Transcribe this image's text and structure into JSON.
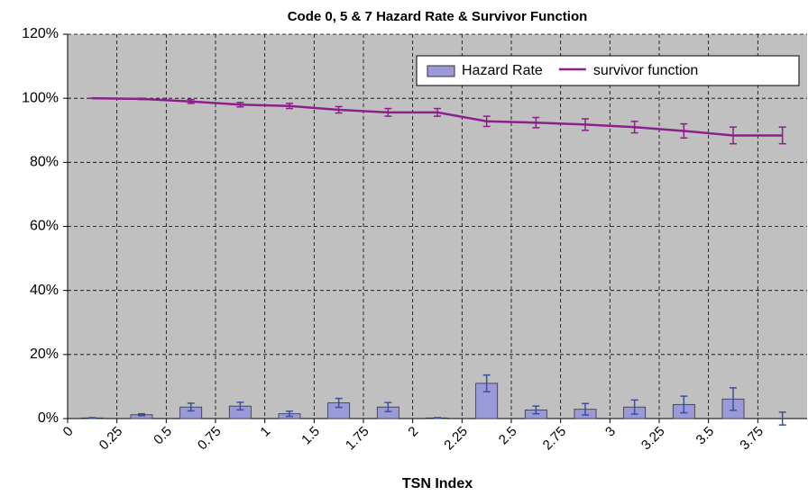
{
  "chart_data": {
    "type": "bar_line",
    "title": "Code 0, 5 & 7  Hazard Rate & Survivor Function",
    "x_label": "TSN Index",
    "categories": [
      "0",
      "0.25",
      "0.5",
      "0.75",
      "1",
      "1.5",
      "1.75",
      "2",
      "2.25",
      "2.5",
      "2.75",
      "3",
      "3.25",
      "3.5",
      "3.75"
    ],
    "series": [
      {
        "name": "Hazard Rate",
        "kind": "bar",
        "color": "#9a9ad8",
        "values": [
          0.2,
          1.2,
          3.6,
          3.9,
          1.5,
          4.9,
          3.6,
          0.2,
          11,
          2.7,
          2.9,
          3.6,
          4.4,
          6.1,
          0
        ],
        "errors": [
          0.1,
          0.3,
          1.2,
          1.2,
          0.8,
          1.4,
          1.4,
          0.1,
          2.6,
          1.2,
          1.8,
          2.2,
          2.6,
          3.5,
          2.0
        ]
      },
      {
        "name": "survivor function",
        "kind": "line",
        "color": "#8c1f8c",
        "values": [
          100,
          99.8,
          99,
          98,
          97.6,
          96.4,
          95.6,
          95.6,
          92.8,
          92.4,
          91.8,
          91,
          89.8,
          88.4,
          88.4
        ],
        "errors": [
          0,
          0.2,
          0.6,
          0.7,
          0.8,
          1.0,
          1.2,
          1.2,
          1.6,
          1.6,
          1.8,
          1.8,
          2.2,
          2.6,
          2.6
        ]
      }
    ],
    "ylim": [
      0,
      120
    ],
    "yticks": [
      {
        "value": 0,
        "label": "0%"
      },
      {
        "value": 20,
        "label": "20%"
      },
      {
        "value": 40,
        "label": "40%"
      },
      {
        "value": 60,
        "label": "60%"
      },
      {
        "value": 80,
        "label": "80%"
      },
      {
        "value": 100,
        "label": "100%"
      },
      {
        "value": 120,
        "label": "120%"
      }
    ],
    "grid": true,
    "legend": "top-right"
  }
}
